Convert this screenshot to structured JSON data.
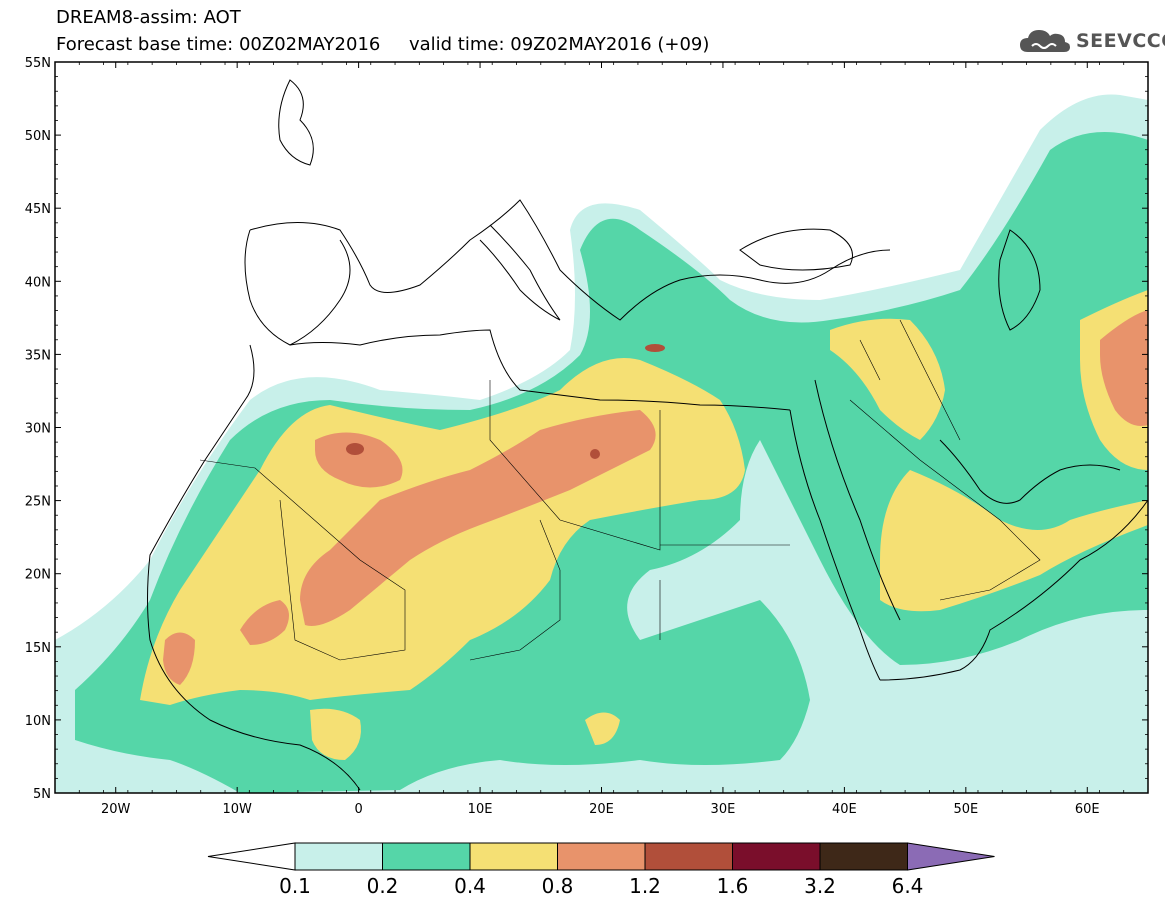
{
  "header": {
    "line1": "DREAM8-assim: AOT",
    "line2": "Forecast base time: 00Z02MAY2016     valid time: 09Z02MAY2016 (+09)"
  },
  "logo": {
    "text": "SEEVCCC",
    "icon": "cloud-icon"
  },
  "map": {
    "lon_range": [
      -25,
      65
    ],
    "lat_range": [
      5,
      55
    ],
    "lat_ticks": [
      "5N",
      "10N",
      "15N",
      "20N",
      "25N",
      "30N",
      "35N",
      "40N",
      "45N",
      "50N",
      "55N"
    ],
    "lon_ticks": [
      "20W",
      "10W",
      "0",
      "10E",
      "20E",
      "30E",
      "40E",
      "50E",
      "60E"
    ],
    "ocean_color": "#ffffff",
    "coast_color": "#000000"
  },
  "colorbar": {
    "labels": [
      "0.1",
      "0.2",
      "0.4",
      "0.8",
      "1.2",
      "1.6",
      "3.2",
      "6.4"
    ],
    "colors": [
      "#ffffff",
      "#c8f0ea",
      "#55d6a8",
      "#f5e074",
      "#e8936b",
      "#b14f3a",
      "#7a0e2b",
      "#3e2818",
      "#8b6bb5"
    ]
  }
}
